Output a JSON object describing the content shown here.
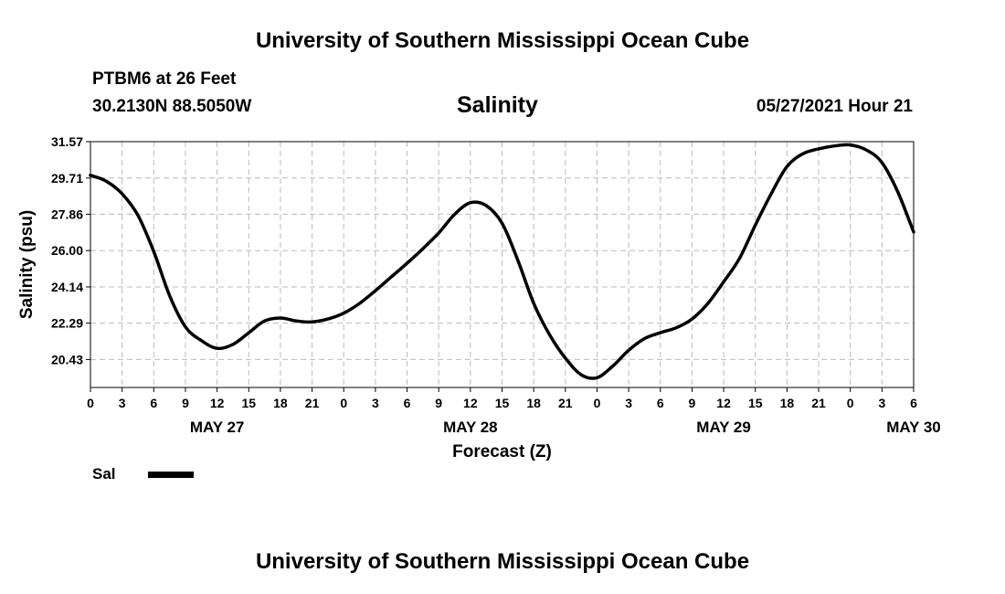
{
  "header": {
    "title": "University of Southern Mississippi Ocean Cube",
    "station": "PTBM6 at 26 Feet",
    "coords": "30.2130N  88.5050W",
    "timestamp": "05/27/2021 Hour 21"
  },
  "footer": {
    "title": "University of Southern Mississippi Ocean Cube"
  },
  "legend": {
    "label": "Sal"
  },
  "colors": {
    "line": "#000000",
    "grid": "#bbbbbb"
  },
  "chart_data": {
    "type": "line",
    "title": "Salinity",
    "xlabel": "Forecast (Z)",
    "ylabel": "Salinity (psu)",
    "ylim": [
      19.0,
      31.57
    ],
    "yticks": [
      "20.43",
      "22.29",
      "24.14",
      "26.00",
      "27.86",
      "29.71",
      "31.57"
    ],
    "x_range_hours": [
      0,
      78
    ],
    "xticks": [
      "0",
      "3",
      "6",
      "9",
      "12",
      "15",
      "18",
      "21",
      "0",
      "3",
      "6",
      "9",
      "12",
      "15",
      "18",
      "21",
      "0",
      "3",
      "6",
      "9",
      "12",
      "15",
      "18",
      "21",
      "0",
      "3",
      "6"
    ],
    "date_labels": [
      {
        "label": "MAY 27",
        "hour": 12
      },
      {
        "label": "MAY 28",
        "hour": 36
      },
      {
        "label": "MAY 29",
        "hour": 60
      },
      {
        "label": "MAY 30",
        "hour": 78
      }
    ],
    "grid": true,
    "series": [
      {
        "name": "Sal",
        "x": [
          0,
          1.5,
          3,
          4.5,
          6,
          7.5,
          9,
          10.5,
          12,
          13.5,
          15,
          16.5,
          18,
          19.5,
          21,
          22.5,
          24,
          25.5,
          27,
          28.5,
          30,
          31.5,
          33,
          34.5,
          36,
          37.5,
          39,
          40.5,
          42,
          43.5,
          45,
          46.5,
          48,
          49.5,
          51,
          52.5,
          54,
          55.5,
          57,
          58.5,
          60,
          61.5,
          63,
          64.5,
          66,
          67.5,
          69,
          70.5,
          72,
          73.5,
          75,
          76.5,
          78
        ],
        "values": [
          29.85,
          29.55,
          28.9,
          27.8,
          25.95,
          23.7,
          22.1,
          21.4,
          21.0,
          21.2,
          21.8,
          22.4,
          22.55,
          22.4,
          22.35,
          22.5,
          22.8,
          23.3,
          23.95,
          24.65,
          25.35,
          26.1,
          26.9,
          27.85,
          28.45,
          28.3,
          27.4,
          25.5,
          23.3,
          21.7,
          20.5,
          19.65,
          19.5,
          20.1,
          20.9,
          21.5,
          21.8,
          22.05,
          22.5,
          23.3,
          24.4,
          25.6,
          27.3,
          28.9,
          30.3,
          30.95,
          31.2,
          31.35,
          31.4,
          31.15,
          30.5,
          29.0,
          26.95
        ]
      }
    ]
  }
}
